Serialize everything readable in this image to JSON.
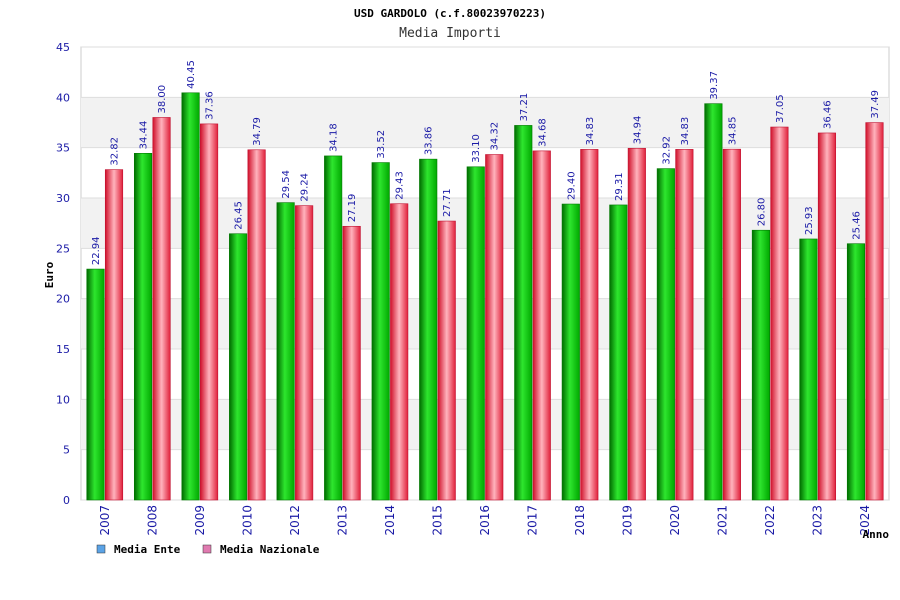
{
  "chart_data": {
    "type": "bar",
    "title": "USD GARDOLO (c.f.80023970223)",
    "subtitle": "Media Importi",
    "ylabel": "Euro",
    "xlabel": "Anno",
    "ylim": [
      0,
      45
    ],
    "yticks": [
      0,
      5,
      10,
      15,
      20,
      25,
      30,
      35,
      40,
      45
    ],
    "grid": true,
    "legend_position": "bottom-left",
    "categories": [
      "2007",
      "2008",
      "2009",
      "2010",
      "2012",
      "2013",
      "2014",
      "2015",
      "2016",
      "2017",
      "2018",
      "2019",
      "2020",
      "2021",
      "2022",
      "2023",
      "2024"
    ],
    "series": [
      {
        "name": "Media Ente",
        "color": "#00b000",
        "legend_color": "#5ba3e6",
        "values": [
          22.94,
          34.44,
          40.45,
          26.45,
          29.54,
          34.18,
          33.52,
          33.86,
          33.1,
          37.21,
          29.4,
          29.31,
          32.92,
          39.37,
          26.8,
          25.93,
          25.46
        ]
      },
      {
        "name": "Media Nazionale",
        "color": "#e8384f",
        "legend_color": "#e07ab0",
        "values": [
          32.82,
          38.0,
          37.36,
          34.79,
          29.24,
          27.19,
          29.43,
          27.71,
          34.32,
          34.68,
          34.83,
          34.94,
          34.83,
          34.85,
          37.05,
          36.46,
          37.49
        ]
      }
    ]
  }
}
